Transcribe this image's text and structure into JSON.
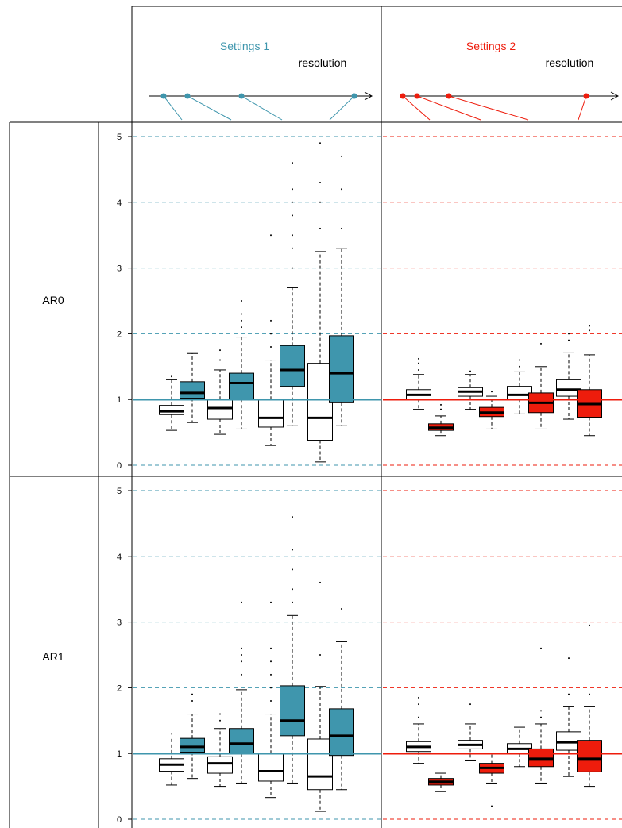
{
  "colors": {
    "settings1": "#3f96ad",
    "settings2": "#ee1c0c",
    "frame": "#000000",
    "open_box": "#ffffff"
  },
  "header": {
    "settings1": {
      "title": "Settings 1",
      "axis_label": "resolution"
    },
    "settings2": {
      "title": "Settings 2",
      "axis_label": "resolution"
    }
  },
  "chart_data": {
    "type": "boxplot",
    "reference_line": 1,
    "ylim": [
      0,
      5
    ],
    "yticks": [
      0,
      1,
      2,
      3,
      4,
      5
    ],
    "rows": [
      {
        "label": "AR0",
        "panels": [
          {
            "settings": "Settings 1",
            "boxes": [
              {
                "fill": "open",
                "q1": 0.77,
                "median": 0.82,
                "q3": 0.91,
                "wlo": 0.53,
                "whi": 1.3,
                "out": [
                  1.35
                ]
              },
              {
                "fill": "filled",
                "q1": 1.02,
                "median": 1.1,
                "q3": 1.27,
                "wlo": 0.65,
                "whi": 1.7,
                "out": []
              },
              {
                "fill": "open",
                "q1": 0.7,
                "median": 0.87,
                "q3": 1.0,
                "wlo": 0.47,
                "whi": 1.45,
                "out": [
                  1.6,
                  1.75
                ]
              },
              {
                "fill": "filled",
                "q1": 1.0,
                "median": 1.25,
                "q3": 1.4,
                "wlo": 0.55,
                "whi": 1.95,
                "out": [
                  2.1,
                  2.2,
                  2.3,
                  2.5
                ]
              },
              {
                "fill": "open",
                "q1": 0.58,
                "median": 0.72,
                "q3": 1.0,
                "wlo": 0.3,
                "whi": 1.6,
                "out": [
                  1.8,
                  2.0,
                  2.2,
                  3.5
                ]
              },
              {
                "fill": "filled",
                "q1": 1.2,
                "median": 1.45,
                "q3": 1.82,
                "wlo": 0.6,
                "whi": 2.7,
                "out": [
                  3.0,
                  3.3,
                  3.5,
                  3.8,
                  4.0,
                  4.2,
                  4.6
                ]
              },
              {
                "fill": "open",
                "q1": 0.38,
                "median": 0.72,
                "q3": 1.55,
                "wlo": 0.05,
                "whi": 3.25,
                "out": [
                  3.6,
                  4.0,
                  4.3,
                  4.9
                ]
              },
              {
                "fill": "filled",
                "q1": 0.95,
                "median": 1.4,
                "q3": 1.97,
                "wlo": 0.6,
                "whi": 3.3,
                "out": [
                  3.6,
                  4.2,
                  4.7
                ]
              }
            ]
          },
          {
            "settings": "Settings 2",
            "boxes": [
              {
                "fill": "open",
                "q1": 1.0,
                "median": 1.07,
                "q3": 1.15,
                "wlo": 0.85,
                "whi": 1.38,
                "out": [
                  1.45,
                  1.55,
                  1.62
                ]
              },
              {
                "fill": "filled",
                "q1": 0.53,
                "median": 0.57,
                "q3": 0.63,
                "wlo": 0.45,
                "whi": 0.75,
                "out": [
                  0.85,
                  0.92
                ]
              },
              {
                "fill": "open",
                "q1": 1.05,
                "median": 1.12,
                "q3": 1.18,
                "wlo": 0.85,
                "whi": 1.38,
                "out": [
                  1.43
                ]
              },
              {
                "fill": "filled",
                "q1": 0.74,
                "median": 0.8,
                "q3": 0.88,
                "wlo": 0.55,
                "whi": 1.05,
                "out": [
                  1.12
                ]
              },
              {
                "fill": "open",
                "q1": 1.0,
                "median": 1.07,
                "q3": 1.2,
                "wlo": 0.78,
                "whi": 1.42,
                "out": [
                  1.5,
                  1.6
                ]
              },
              {
                "fill": "filled",
                "q1": 0.8,
                "median": 0.95,
                "q3": 1.1,
                "wlo": 0.55,
                "whi": 1.5,
                "out": [
                  1.85
                ]
              },
              {
                "fill": "open",
                "q1": 1.05,
                "median": 1.15,
                "q3": 1.3,
                "wlo": 0.7,
                "whi": 1.72,
                "out": [
                  1.9,
                  2.0
                ]
              },
              {
                "fill": "filled",
                "q1": 0.73,
                "median": 0.93,
                "q3": 1.15,
                "wlo": 0.45,
                "whi": 1.68,
                "out": [
                  2.05,
                  2.12
                ]
              }
            ]
          }
        ]
      },
      {
        "label": "AR1",
        "panels": [
          {
            "settings": "Settings 1",
            "boxes": [
              {
                "fill": "open",
                "q1": 0.73,
                "median": 0.83,
                "q3": 0.92,
                "wlo": 0.52,
                "whi": 1.25,
                "out": [
                  1.3
                ]
              },
              {
                "fill": "filled",
                "q1": 1.02,
                "median": 1.1,
                "q3": 1.23,
                "wlo": 0.62,
                "whi": 1.6,
                "out": [
                  1.8,
                  1.9
                ]
              },
              {
                "fill": "open",
                "q1": 0.7,
                "median": 0.85,
                "q3": 0.95,
                "wlo": 0.5,
                "whi": 1.38,
                "out": [
                  1.5,
                  1.6
                ]
              },
              {
                "fill": "filled",
                "q1": 1.0,
                "median": 1.15,
                "q3": 1.38,
                "wlo": 0.55,
                "whi": 1.97,
                "out": [
                  2.2,
                  2.4,
                  2.5,
                  2.6,
                  3.3
                ]
              },
              {
                "fill": "open",
                "q1": 0.58,
                "median": 0.73,
                "q3": 1.0,
                "wlo": 0.33,
                "whi": 1.6,
                "out": [
                  1.8,
                  2.0,
                  2.2,
                  2.4,
                  2.6,
                  3.3
                ]
              },
              {
                "fill": "filled",
                "q1": 1.27,
                "median": 1.5,
                "q3": 2.03,
                "wlo": 0.55,
                "whi": 3.1,
                "out": [
                  3.3,
                  3.5,
                  3.8,
                  4.1,
                  4.6
                ]
              },
              {
                "fill": "open",
                "q1": 0.45,
                "median": 0.65,
                "q3": 1.22,
                "wlo": 0.12,
                "whi": 2.02,
                "out": [
                  2.5,
                  3.6
                ]
              },
              {
                "fill": "filled",
                "q1": 0.97,
                "median": 1.27,
                "q3": 1.68,
                "wlo": 0.45,
                "whi": 2.7,
                "out": [
                  3.2
                ]
              }
            ]
          },
          {
            "settings": "Settings 2",
            "boxes": [
              {
                "fill": "open",
                "q1": 1.03,
                "median": 1.1,
                "q3": 1.18,
                "wlo": 0.85,
                "whi": 1.45,
                "out": [
                  1.55,
                  1.75,
                  1.85
                ]
              },
              {
                "fill": "filled",
                "q1": 0.52,
                "median": 0.57,
                "q3": 0.62,
                "wlo": 0.42,
                "whi": 0.7,
                "out": []
              },
              {
                "fill": "open",
                "q1": 1.07,
                "median": 1.13,
                "q3": 1.2,
                "wlo": 0.9,
                "whi": 1.45,
                "out": [
                  1.75
                ]
              },
              {
                "fill": "filled",
                "q1": 0.7,
                "median": 0.78,
                "q3": 0.85,
                "wlo": 0.55,
                "whi": 1.0,
                "out": [
                  0.2
                ]
              },
              {
                "fill": "open",
                "q1": 1.0,
                "median": 1.07,
                "q3": 1.15,
                "wlo": 0.8,
                "whi": 1.4,
                "out": []
              },
              {
                "fill": "filled",
                "q1": 0.8,
                "median": 0.92,
                "q3": 1.07,
                "wlo": 0.55,
                "whi": 1.45,
                "out": [
                  1.55,
                  1.65,
                  2.6
                ]
              },
              {
                "fill": "open",
                "q1": 1.05,
                "median": 1.17,
                "q3": 1.33,
                "wlo": 0.65,
                "whi": 1.72,
                "out": [
                  1.9,
                  2.45
                ]
              },
              {
                "fill": "filled",
                "q1": 0.72,
                "median": 0.92,
                "q3": 1.2,
                "wlo": 0.5,
                "whi": 1.72,
                "out": [
                  1.9,
                  2.95
                ]
              }
            ]
          }
        ]
      }
    ]
  }
}
